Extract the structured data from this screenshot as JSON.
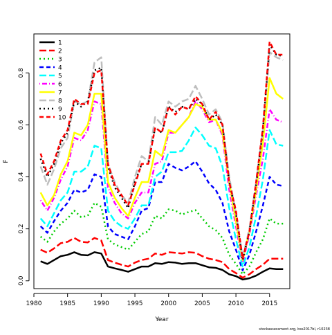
{
  "chart_data": {
    "type": "line",
    "xlabel": "Year",
    "ylabel": "F",
    "xlim": [
      1980,
      2018
    ],
    "ylim": [
      -0.03,
      0.95
    ],
    "xticks": [
      1980,
      1985,
      1990,
      1995,
      2000,
      2005,
      2010,
      2015
    ],
    "yticks": [
      0.0,
      0.2,
      0.4,
      0.6,
      0.8
    ],
    "ytick_labels": [
      "0.0",
      "0.2",
      "0.4",
      "0.6",
      "0.8"
    ],
    "legend_position": "top-left",
    "grid": false,
    "credit": "stockassessment.org, bss2017bl, r10238",
    "x": [
      1981,
      1982,
      1983,
      1984,
      1985,
      1986,
      1987,
      1988,
      1989,
      1990,
      1991,
      1992,
      1993,
      1994,
      1995,
      1996,
      1997,
      1998,
      1999,
      2000,
      2001,
      2002,
      2003,
      2004,
      2005,
      2006,
      2007,
      2008,
      2009,
      2010,
      2011,
      2012,
      2013,
      2014,
      2015,
      2016,
      2017
    ],
    "series": [
      {
        "name": "1",
        "color": "#000000",
        "dash": "solid",
        "width": 2.5,
        "values": [
          0.075,
          0.065,
          0.08,
          0.095,
          0.1,
          0.11,
          0.1,
          0.098,
          0.11,
          0.105,
          0.055,
          0.048,
          0.042,
          0.035,
          0.045,
          0.055,
          0.055,
          0.068,
          0.065,
          0.072,
          0.07,
          0.065,
          0.068,
          0.068,
          0.06,
          0.052,
          0.05,
          0.042,
          0.025,
          0.018,
          0.005,
          0.01,
          0.02,
          0.035,
          0.048,
          0.045,
          0.045
        ]
      },
      {
        "name": "2",
        "color": "#ff0000",
        "dash": "longdash",
        "width": 2.5,
        "values": [
          0.12,
          0.108,
          0.125,
          0.145,
          0.15,
          0.165,
          0.15,
          0.148,
          0.165,
          0.155,
          0.08,
          0.07,
          0.062,
          0.055,
          0.07,
          0.08,
          0.085,
          0.105,
          0.1,
          0.11,
          0.108,
          0.105,
          0.11,
          0.108,
          0.095,
          0.085,
          0.08,
          0.072,
          0.045,
          0.03,
          0.012,
          0.025,
          0.045,
          0.062,
          0.085,
          0.085,
          0.085
        ]
      },
      {
        "name": "3",
        "color": "#00cc00",
        "dash": "dot",
        "width": 2.5,
        "values": [
          0.17,
          0.15,
          0.19,
          0.22,
          0.24,
          0.27,
          0.245,
          0.25,
          0.3,
          0.285,
          0.16,
          0.14,
          0.13,
          0.12,
          0.15,
          0.18,
          0.19,
          0.25,
          0.24,
          0.275,
          0.27,
          0.255,
          0.265,
          0.272,
          0.24,
          0.21,
          0.195,
          0.165,
          0.1,
          0.065,
          0.025,
          0.055,
          0.11,
          0.16,
          0.24,
          0.22,
          0.22
        ]
      },
      {
        "name": "4",
        "color": "#0000ff",
        "dash": "dash",
        "width": 2.5,
        "values": [
          0.21,
          0.185,
          0.23,
          0.27,
          0.3,
          0.35,
          0.34,
          0.35,
          0.41,
          0.4,
          0.21,
          0.18,
          0.17,
          0.16,
          0.21,
          0.27,
          0.28,
          0.38,
          0.38,
          0.45,
          0.435,
          0.425,
          0.44,
          0.46,
          0.42,
          0.375,
          0.35,
          0.3,
          0.19,
          0.12,
          0.04,
          0.1,
          0.19,
          0.29,
          0.4,
          0.37,
          0.365
        ]
      },
      {
        "name": "5",
        "color": "#00ffff",
        "dash": "longdash",
        "width": 2.5,
        "values": [
          0.24,
          0.21,
          0.26,
          0.31,
          0.34,
          0.42,
          0.42,
          0.44,
          0.52,
          0.51,
          0.27,
          0.23,
          0.21,
          0.2,
          0.24,
          0.29,
          0.29,
          0.4,
          0.42,
          0.495,
          0.495,
          0.5,
          0.54,
          0.59,
          0.56,
          0.52,
          0.51,
          0.44,
          0.28,
          0.16,
          0.055,
          0.13,
          0.25,
          0.39,
          0.58,
          0.525,
          0.52
        ]
      },
      {
        "name": "6",
        "color": "#ff00ff",
        "dash": "dashdot",
        "width": 2.5,
        "values": [
          0.31,
          0.27,
          0.32,
          0.39,
          0.44,
          0.55,
          0.54,
          0.58,
          0.69,
          0.68,
          0.36,
          0.3,
          0.26,
          0.24,
          0.3,
          0.34,
          0.34,
          0.45,
          0.46,
          0.57,
          0.57,
          0.6,
          0.63,
          0.69,
          0.66,
          0.61,
          0.62,
          0.56,
          0.35,
          0.21,
          0.07,
          0.18,
          0.33,
          0.47,
          0.66,
          0.62,
          0.61
        ]
      },
      {
        "name": "7",
        "color": "#ffff00",
        "dash": "solid",
        "width": 2.5,
        "values": [
          0.34,
          0.29,
          0.33,
          0.41,
          0.46,
          0.57,
          0.56,
          0.6,
          0.72,
          0.72,
          0.38,
          0.32,
          0.28,
          0.25,
          0.32,
          0.38,
          0.38,
          0.5,
          0.48,
          0.58,
          0.57,
          0.6,
          0.63,
          0.68,
          0.67,
          0.62,
          0.62,
          0.57,
          0.38,
          0.23,
          0.08,
          0.19,
          0.35,
          0.53,
          0.78,
          0.72,
          0.7
        ]
      },
      {
        "name": "8",
        "color": "#bebebe",
        "dash": "longdash",
        "width": 2.5,
        "values": [
          0.44,
          0.37,
          0.43,
          0.51,
          0.55,
          0.69,
          0.68,
          0.69,
          0.84,
          0.86,
          0.45,
          0.38,
          0.33,
          0.3,
          0.4,
          0.48,
          0.46,
          0.63,
          0.6,
          0.69,
          0.67,
          0.69,
          0.7,
          0.75,
          0.7,
          0.64,
          0.66,
          0.61,
          0.4,
          0.26,
          0.09,
          0.2,
          0.38,
          0.58,
          0.88,
          0.86,
          0.85
        ]
      },
      {
        "name": "9",
        "color": "#000000",
        "dash": "dot",
        "width": 2.5,
        "values": [
          0.47,
          0.4,
          0.45,
          0.53,
          0.57,
          0.69,
          0.67,
          0.69,
          0.81,
          0.82,
          0.44,
          0.36,
          0.32,
          0.28,
          0.38,
          0.45,
          0.45,
          0.59,
          0.57,
          0.67,
          0.65,
          0.67,
          0.66,
          0.7,
          0.68,
          0.62,
          0.64,
          0.6,
          0.38,
          0.26,
          0.08,
          0.19,
          0.37,
          0.58,
          0.91,
          0.87,
          0.865
        ]
      },
      {
        "name": "10",
        "color": "#ff0000",
        "dash": "dash",
        "width": 2.5,
        "values": [
          0.49,
          0.41,
          0.46,
          0.54,
          0.58,
          0.7,
          0.68,
          0.68,
          0.8,
          0.81,
          0.45,
          0.37,
          0.33,
          0.29,
          0.37,
          0.45,
          0.45,
          0.59,
          0.57,
          0.67,
          0.64,
          0.67,
          0.66,
          0.71,
          0.68,
          0.62,
          0.65,
          0.6,
          0.38,
          0.27,
          0.085,
          0.19,
          0.38,
          0.59,
          0.92,
          0.87,
          0.87
        ]
      }
    ]
  }
}
